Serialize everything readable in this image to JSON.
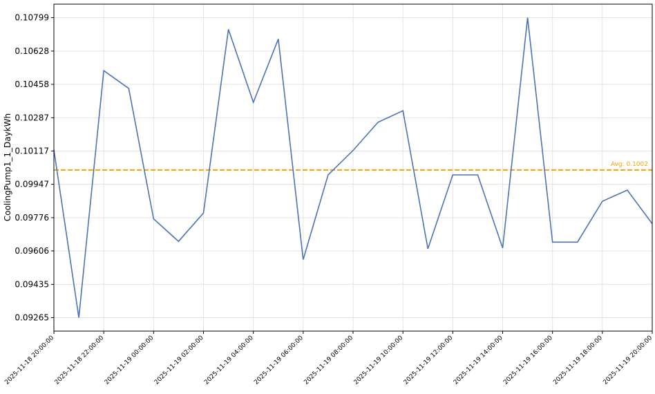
{
  "chart_data": {
    "type": "line",
    "title": "",
    "xlabel": "",
    "ylabel": "CoolingPump1_1_DaykWh",
    "x": [
      "2025-11-18 20:00:00",
      "2025-11-18 21:00:00",
      "2025-11-18 22:00:00",
      "2025-11-18 23:00:00",
      "2025-11-19 00:00:00",
      "2025-11-19 01:00:00",
      "2025-11-19 02:00:00",
      "2025-11-19 03:00:00",
      "2025-11-19 04:00:00",
      "2025-11-19 05:00:00",
      "2025-11-19 06:00:00",
      "2025-11-19 07:00:00",
      "2025-11-19 08:00:00",
      "2025-11-19 09:00:00",
      "2025-11-19 10:00:00",
      "2025-11-19 11:00:00",
      "2025-11-19 12:00:00",
      "2025-11-19 13:00:00",
      "2025-11-19 14:00:00",
      "2025-11-19 15:00:00",
      "2025-11-19 16:00:00",
      "2025-11-19 17:00:00",
      "2025-11-19 18:00:00",
      "2025-11-19 19:00:00",
      "2025-11-19 20:00:00"
    ],
    "series": [
      {
        "values": [
          0.10123,
          0.09265,
          0.10528,
          0.10437,
          0.0977,
          0.09655,
          0.098,
          0.10739,
          0.10366,
          0.1069,
          0.09562,
          0.09995,
          0.1012,
          0.10264,
          0.10323,
          0.09617,
          0.09995,
          0.09995,
          0.09621,
          0.10799,
          0.09651,
          0.09651,
          0.0986,
          0.09917,
          0.09745
        ],
        "color": "#4a72b8"
      }
    ],
    "x_tick_labels": [
      "2025-11-18 20:00:00",
      "2025-11-18 22:00:00",
      "2025-11-19 00:00:00",
      "2025-11-19 02:00:00",
      "2025-11-19 04:00:00",
      "2025-11-19 06:00:00",
      "2025-11-19 08:00:00",
      "2025-11-19 10:00:00",
      "2025-11-19 12:00:00",
      "2025-11-19 14:00:00",
      "2025-11-19 16:00:00",
      "2025-11-19 18:00:00",
      "2025-11-19 20:00:00"
    ],
    "y_tick_labels": [
      "0.09265",
      "0.09435",
      "0.09606",
      "0.09776",
      "0.09947",
      "0.10117",
      "0.10287",
      "0.10458",
      "0.10628",
      "0.10799"
    ],
    "y_ticks": [
      0.09265,
      0.09435,
      0.09606,
      0.09776,
      0.09947,
      0.10117,
      0.10287,
      0.10458,
      0.10628,
      0.10799
    ],
    "ylim": [
      0.09196,
      0.10868
    ],
    "grid": true,
    "average": {
      "value": 0.1002,
      "label": "Avg: 0.1002",
      "color": "#f5a30a"
    }
  }
}
